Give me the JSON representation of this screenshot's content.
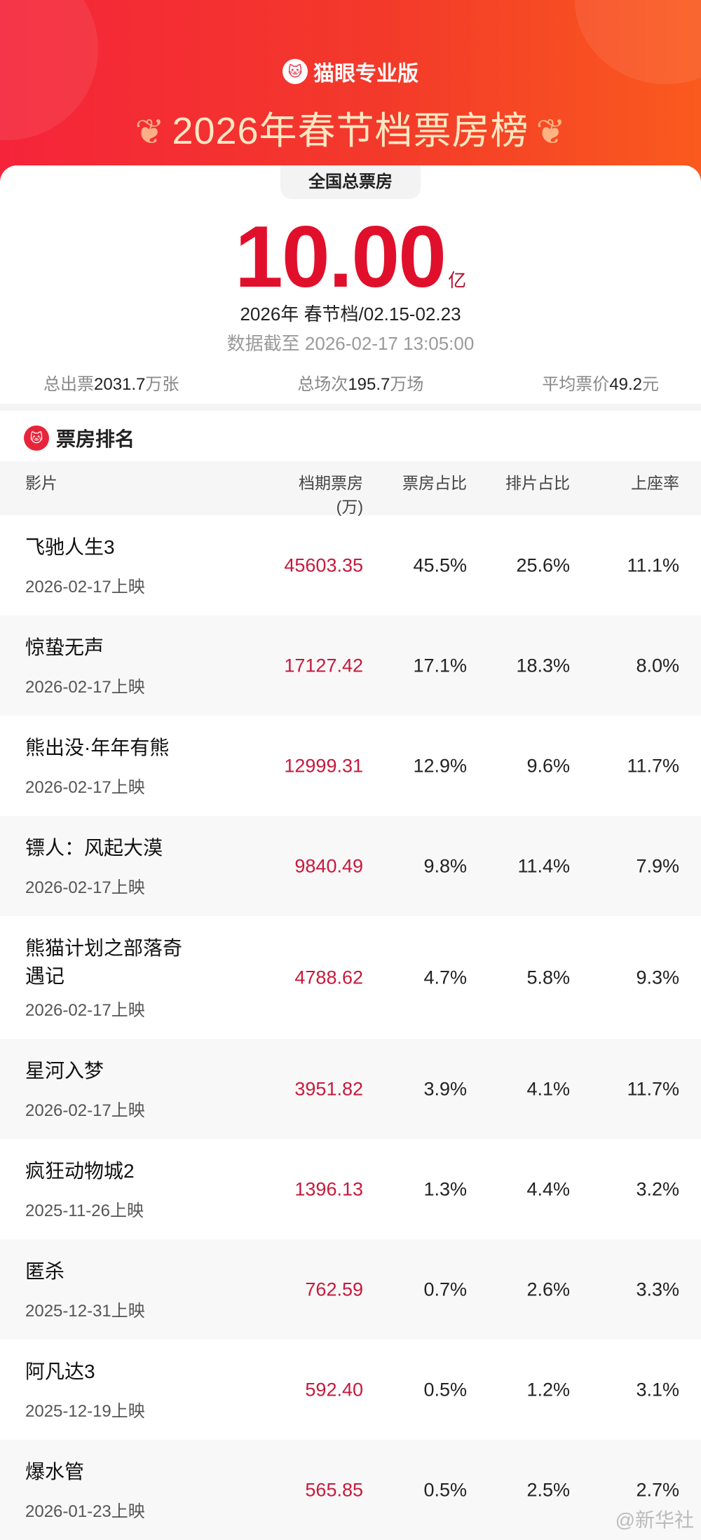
{
  "header": {
    "brand": "猫眼专业版",
    "title": "2026年春节档票房榜",
    "accent": "#e0102c"
  },
  "summary": {
    "tab": "全国总票房",
    "total": "10.00",
    "unit": "亿",
    "period": "2026年 春节档/02.15-02.23",
    "as_of": "数据截至 2026-02-17 13:05:00",
    "tickets_label": "总出票",
    "tickets_value": "2031.7",
    "tickets_unit": "万张",
    "shows_label": "总场次",
    "shows_value": "195.7",
    "shows_unit": "万场",
    "price_label": "平均票价",
    "price_value": "49.2",
    "price_unit": "元"
  },
  "ranking": {
    "title": "票房排名",
    "columns": [
      "影片",
      "档期票房",
      "(万)",
      "票房占比",
      "排片占比",
      "上座率"
    ],
    "rows": [
      {
        "name": "飞驰人生3",
        "date": "2026-02-17上映",
        "box": "45603.35",
        "share": "45.5%",
        "shows": "25.6%",
        "seat": "11.1%"
      },
      {
        "name": "惊蛰无声",
        "date": "2026-02-17上映",
        "box": "17127.42",
        "share": "17.1%",
        "shows": "18.3%",
        "seat": "8.0%"
      },
      {
        "name": "熊出没·年年有熊",
        "date": "2026-02-17上映",
        "box": "12999.31",
        "share": "12.9%",
        "shows": "9.6%",
        "seat": "11.7%"
      },
      {
        "name": "镖人：风起大漠",
        "date": "2026-02-17上映",
        "box": "9840.49",
        "share": "9.8%",
        "shows": "11.4%",
        "seat": "7.9%"
      },
      {
        "name": "熊猫计划之部落奇遇记",
        "date": "2026-02-17上映",
        "box": "4788.62",
        "share": "4.7%",
        "shows": "5.8%",
        "seat": "9.3%"
      },
      {
        "name": "星河入梦",
        "date": "2026-02-17上映",
        "box": "3951.82",
        "share": "3.9%",
        "shows": "4.1%",
        "seat": "11.7%"
      },
      {
        "name": "疯狂动物城2",
        "date": "2025-11-26上映",
        "box": "1396.13",
        "share": "1.3%",
        "shows": "4.4%",
        "seat": "3.2%"
      },
      {
        "name": "匿杀",
        "date": "2025-12-31上映",
        "box": "762.59",
        "share": "0.7%",
        "shows": "2.6%",
        "seat": "3.3%"
      },
      {
        "name": "阿凡达3",
        "date": "2025-12-19上映",
        "box": "592.40",
        "share": "0.5%",
        "shows": "1.2%",
        "seat": "3.1%"
      },
      {
        "name": "爆水管",
        "date": "2026-01-23上映",
        "box": "565.85",
        "share": "0.5%",
        "shows": "2.5%",
        "seat": "2.7%"
      }
    ]
  },
  "watermark": "@新华社"
}
